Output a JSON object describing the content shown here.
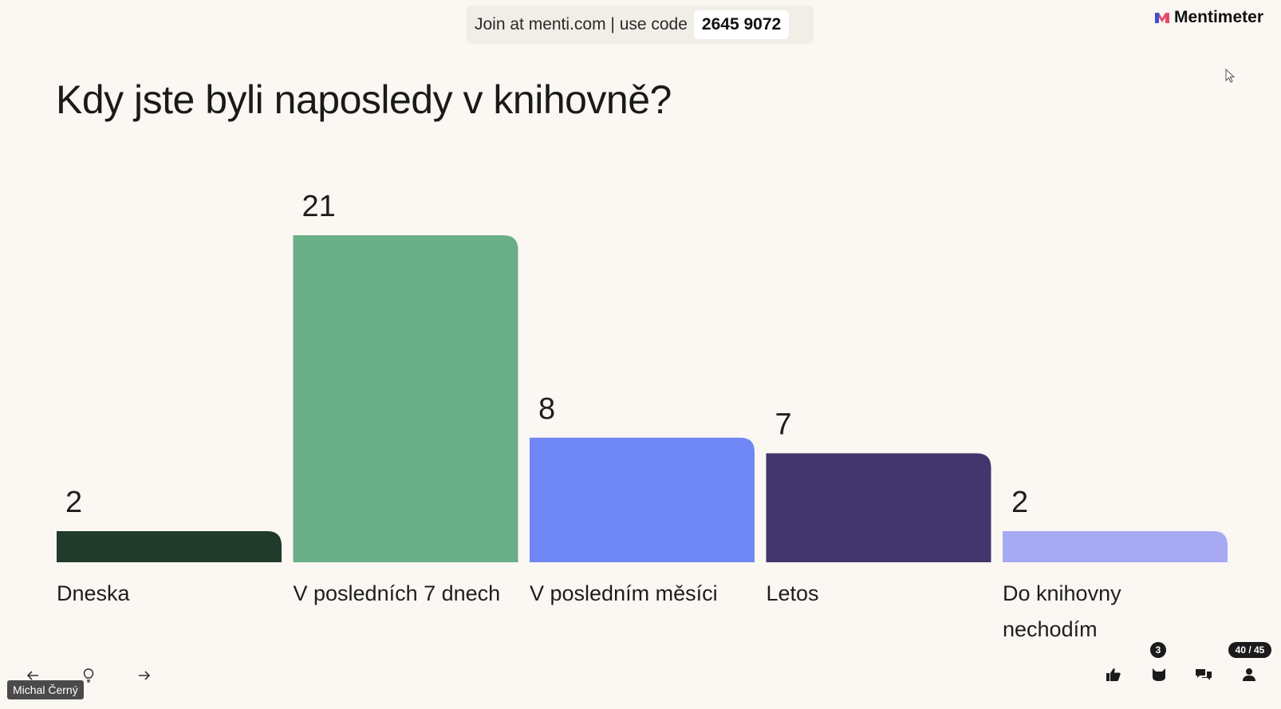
{
  "header": {
    "join_text": "Join at menti.com | use code",
    "code": "2645 9072",
    "brand": "Mentimeter"
  },
  "slide": {
    "question": "Kdy jste byli naposledy v knihovně?"
  },
  "chart_data": {
    "type": "bar",
    "title": "Kdy jste byli naposledy v knihovně?",
    "categories": [
      "Dneska",
      "V posledních 7 dnech",
      "V posledním měsíci",
      "Letos",
      "Do knihovny nechodím"
    ],
    "category_lines": [
      [
        "Dneska"
      ],
      [
        "V posledních 7 dnech"
      ],
      [
        "V posledním měsíci"
      ],
      [
        "Letos"
      ],
      [
        "Do knihovny",
        "nechodím"
      ]
    ],
    "values": [
      2,
      21,
      8,
      7,
      2
    ],
    "colors": [
      "#223a2b",
      "#69ae86",
      "#7087f7",
      "#41376c",
      "#a7aaf3"
    ],
    "ylim": [
      0,
      21
    ],
    "grid": false,
    "legend": "none"
  },
  "footer": {
    "presenter": "Michal Černý",
    "reactions_badge": "3",
    "slide_counter": "40 / 45",
    "icons": [
      "arrow-left-icon",
      "lightbulb-icon",
      "arrow-right-icon",
      "thumbs-up-icon",
      "cat-icon",
      "comments-icon",
      "person-icon"
    ]
  }
}
